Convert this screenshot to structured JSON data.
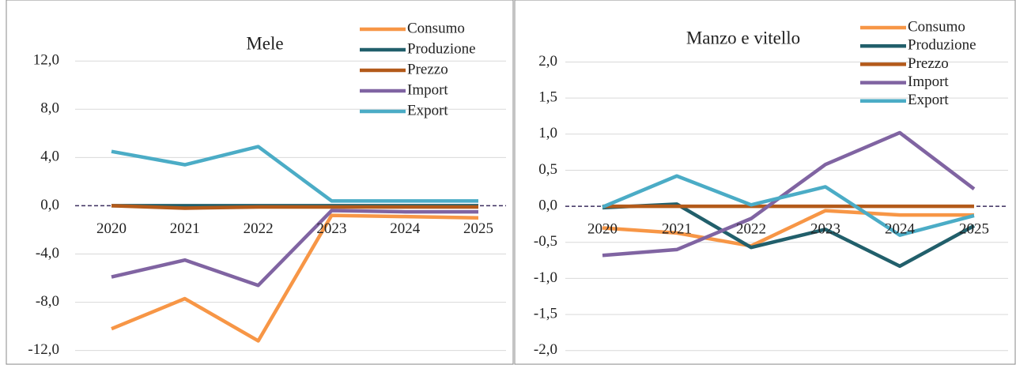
{
  "chart_data": [
    {
      "type": "line",
      "title": "Mele",
      "categories": [
        "2020",
        "2021",
        "2022",
        "2023",
        "2024",
        "2025"
      ],
      "series": [
        {
          "name": "Consumo",
          "color": "#f79646",
          "values": [
            -10.2,
            -7.7,
            -11.2,
            -0.8,
            -0.9,
            -1.0
          ]
        },
        {
          "name": "Produzione",
          "color": "#215f6b",
          "values": [
            0.0,
            0.0,
            0.0,
            0.0,
            0.0,
            0.0
          ]
        },
        {
          "name": "Prezzo",
          "color": "#b35a1a",
          "values": [
            0.0,
            -0.2,
            -0.1,
            -0.1,
            -0.1,
            -0.1
          ]
        },
        {
          "name": "Import",
          "color": "#8064a2",
          "values": [
            -5.9,
            -4.5,
            -6.6,
            -0.4,
            -0.5,
            -0.5
          ]
        },
        {
          "name": "Export",
          "color": "#4bacc6",
          "values": [
            4.5,
            3.4,
            4.9,
            0.4,
            0.4,
            0.4
          ]
        }
      ],
      "ylim": [
        -13.2,
        16.4
      ],
      "yticks": [
        {
          "value": -12,
          "label": "-12,0"
        },
        {
          "value": -8,
          "label": "-8,0"
        },
        {
          "value": -4,
          "label": "-4,0"
        },
        {
          "value": 0,
          "label": "0,0"
        },
        {
          "value": 4,
          "label": "4,0"
        },
        {
          "value": 8,
          "label": "8,0"
        },
        {
          "value": 12,
          "label": "12,0"
        }
      ],
      "grid": true
    },
    {
      "type": "line",
      "title": "Manzo e vitello",
      "categories": [
        "2020",
        "2021",
        "2022",
        "2023",
        "2024",
        "2025"
      ],
      "series": [
        {
          "name": "Consumo",
          "color": "#f79646",
          "values": [
            -0.3,
            -0.37,
            -0.55,
            -0.06,
            -0.12,
            -0.12
          ]
        },
        {
          "name": "Produzione",
          "color": "#215f6b",
          "values": [
            -0.02,
            0.03,
            -0.57,
            -0.32,
            -0.83,
            -0.27
          ]
        },
        {
          "name": "Prezzo",
          "color": "#b35a1a",
          "values": [
            0,
            0,
            0,
            0,
            0,
            0
          ]
        },
        {
          "name": "Import",
          "color": "#8064a2",
          "values": [
            -0.68,
            -0.6,
            -0.17,
            0.58,
            1.02,
            0.24
          ]
        },
        {
          "name": "Export",
          "color": "#4bacc6",
          "values": [
            -0.01,
            0.42,
            0.02,
            0.27,
            -0.4,
            -0.13
          ]
        }
      ],
      "ylim": [
        -2.2,
        2.75
      ],
      "yticks": [
        {
          "value": -2,
          "label": "-2,0"
        },
        {
          "value": -1.5,
          "label": "-1,5"
        },
        {
          "value": -1,
          "label": "-1,0"
        },
        {
          "value": -0.5,
          "label": "-0,5"
        },
        {
          "value": 0,
          "label": "0,0"
        },
        {
          "value": 0.5,
          "label": "0,5"
        },
        {
          "value": 1,
          "label": "1,0"
        },
        {
          "value": 1.5,
          "label": "1,5"
        },
        {
          "value": 2,
          "label": "2,0"
        }
      ],
      "grid": true
    }
  ]
}
